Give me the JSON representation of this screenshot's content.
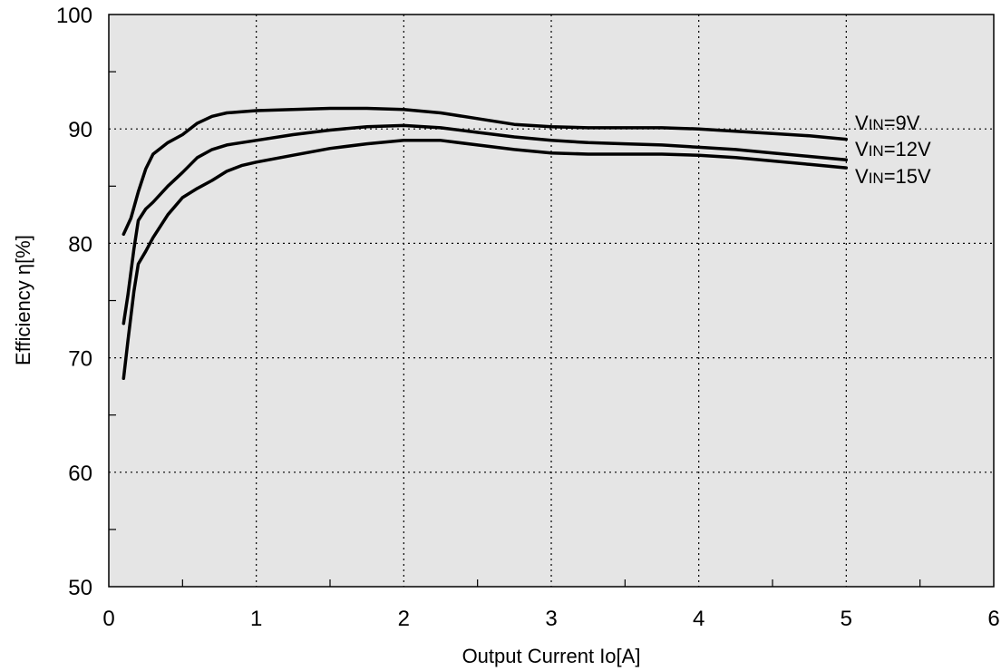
{
  "chart_data": {
    "type": "line",
    "title": "",
    "xlabel": "Output Current Io[A]",
    "ylabel": "Efficiency η[%]",
    "xlim": [
      0,
      6
    ],
    "ylim": [
      50,
      100
    ],
    "x_ticks": [
      0,
      1,
      2,
      3,
      4,
      5,
      6
    ],
    "y_ticks": [
      50,
      60,
      70,
      80,
      90,
      100
    ],
    "grid": true,
    "background": "#e5e5e5",
    "line_color": "#000000",
    "series": [
      {
        "name": "VIN=9V",
        "label_prefix": "V",
        "label_sub": "IN",
        "label_suffix": "=9V",
        "x": [
          0.1,
          0.15,
          0.2,
          0.25,
          0.3,
          0.4,
          0.5,
          0.6,
          0.7,
          0.8,
          0.9,
          1.0,
          1.25,
          1.5,
          1.75,
          2.0,
          2.25,
          2.5,
          2.75,
          3.0,
          3.25,
          3.5,
          3.75,
          4.0,
          4.25,
          4.5,
          4.75,
          5.0
        ],
        "y": [
          80.8,
          82.2,
          84.5,
          86.5,
          87.8,
          88.8,
          89.5,
          90.5,
          91.1,
          91.4,
          91.5,
          91.6,
          91.7,
          91.8,
          91.8,
          91.7,
          91.4,
          90.9,
          90.4,
          90.2,
          90.1,
          90.1,
          90.1,
          90.0,
          89.8,
          89.6,
          89.4,
          89.1
        ]
      },
      {
        "name": "VIN=12V",
        "label_prefix": "V",
        "label_sub": "IN",
        "label_suffix": "=12V",
        "x": [
          0.1,
          0.13,
          0.17,
          0.2,
          0.25,
          0.3,
          0.4,
          0.5,
          0.6,
          0.7,
          0.8,
          0.9,
          1.0,
          1.25,
          1.5,
          1.75,
          2.0,
          2.25,
          2.5,
          2.75,
          3.0,
          3.25,
          3.5,
          3.75,
          4.0,
          4.25,
          4.5,
          4.75,
          5.0
        ],
        "y": [
          73.0,
          75.5,
          79.5,
          82.0,
          83.0,
          83.6,
          85.0,
          86.2,
          87.5,
          88.2,
          88.6,
          88.8,
          89.0,
          89.5,
          89.9,
          90.2,
          90.3,
          90.1,
          89.7,
          89.3,
          89.0,
          88.8,
          88.7,
          88.6,
          88.4,
          88.2,
          87.9,
          87.6,
          87.3
        ]
      },
      {
        "name": "VIN=15V",
        "label_prefix": "V",
        "label_sub": "IN",
        "label_suffix": "=15V",
        "x": [
          0.1,
          0.13,
          0.17,
          0.2,
          0.25,
          0.3,
          0.4,
          0.5,
          0.6,
          0.7,
          0.8,
          0.9,
          1.0,
          1.25,
          1.5,
          1.75,
          2.0,
          2.25,
          2.5,
          2.75,
          3.0,
          3.25,
          3.5,
          3.75,
          4.0,
          4.25,
          4.5,
          4.75,
          5.0
        ],
        "y": [
          68.2,
          71.5,
          75.8,
          78.2,
          79.3,
          80.5,
          82.5,
          84.0,
          84.8,
          85.5,
          86.3,
          86.8,
          87.1,
          87.7,
          88.3,
          88.7,
          89.0,
          89.0,
          88.6,
          88.2,
          87.9,
          87.8,
          87.8,
          87.8,
          87.7,
          87.5,
          87.2,
          86.9,
          86.6
        ]
      }
    ]
  }
}
